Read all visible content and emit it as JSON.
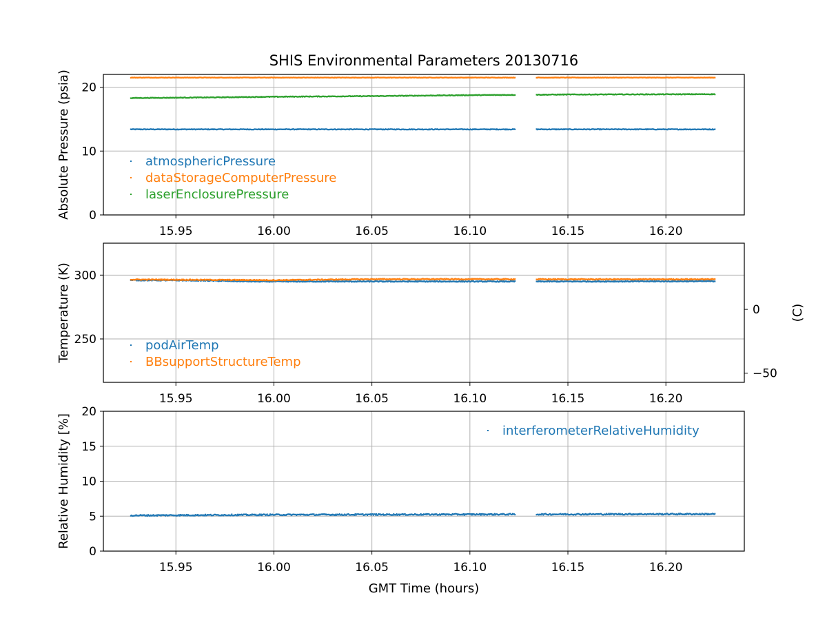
{
  "chart_data": [
    {
      "type": "scatter",
      "title": "SHIS Environmental Parameters 20130716",
      "xlabel": "",
      "ylabel": "Absolute Pressure (psia)",
      "xlim": [
        15.913,
        16.24
      ],
      "ylim": [
        0,
        22
      ],
      "yticks": [
        0,
        10,
        20
      ],
      "xticks": [
        15.95,
        16.0,
        16.05,
        16.1,
        16.15,
        16.2
      ],
      "xtick_labels": [
        "15.95",
        "16.00",
        "16.05",
        "16.10",
        "16.15",
        "16.20"
      ],
      "grid": true,
      "legend_position": "lower-left",
      "segments": [
        [
          15.927,
          16.123
        ],
        [
          16.134,
          16.225
        ]
      ],
      "series": [
        {
          "name": "atmosphericPressure",
          "color": "#1f77b4",
          "points": [
            [
              15.927,
              13.4
            ],
            [
              16.225,
              13.4
            ]
          ],
          "jitter": 0.05
        },
        {
          "name": "dataStorageComputerPressure",
          "color": "#ff7f0e",
          "points": [
            [
              15.927,
              21.5
            ],
            [
              16.225,
              21.5
            ]
          ],
          "jitter": 0.03
        },
        {
          "name": "laserEnclosurePressure",
          "color": "#2ca02c",
          "points": [
            [
              15.927,
              18.3
            ],
            [
              15.97,
              18.4
            ],
            [
              16.0,
              18.5
            ],
            [
              16.05,
              18.6
            ],
            [
              16.1,
              18.75
            ],
            [
              16.15,
              18.85
            ],
            [
              16.225,
              18.9
            ]
          ],
          "jitter": 0.05
        }
      ]
    },
    {
      "type": "scatter",
      "title": "",
      "xlabel": "",
      "ylabel": "Temperature (K)",
      "y2label": "(C)",
      "xlim": [
        15.913,
        16.24
      ],
      "ylim": [
        216,
        325
      ],
      "yticks": [
        250,
        300
      ],
      "y2ticks": [
        0,
        -50
      ],
      "y2_offset": 273.15,
      "xticks": [
        15.95,
        16.0,
        16.05,
        16.1,
        16.15,
        16.2
      ],
      "xtick_labels": [
        "15.95",
        "16.00",
        "16.05",
        "16.10",
        "16.15",
        "16.20"
      ],
      "grid": true,
      "legend_position": "lower-left",
      "segments": [
        [
          15.927,
          16.123
        ],
        [
          16.134,
          16.225
        ]
      ],
      "series": [
        {
          "name": "podAirTemp",
          "color": "#1f77b4",
          "points": [
            [
              15.927,
              296.0
            ],
            [
              15.96,
              295.8
            ],
            [
              15.99,
              295.0
            ],
            [
              16.05,
              295.0
            ],
            [
              16.1,
              295.0
            ],
            [
              16.15,
              295.0
            ],
            [
              16.225,
              295.2
            ]
          ],
          "jitter": 0.35
        },
        {
          "name": "BBsupportStructureTemp",
          "color": "#ff7f0e",
          "points": [
            [
              15.927,
              296.5
            ],
            [
              15.96,
              296.3
            ],
            [
              16.0,
              296.0
            ],
            [
              16.05,
              296.8
            ],
            [
              16.1,
              296.8
            ],
            [
              16.15,
              296.7
            ],
            [
              16.225,
              296.7
            ]
          ],
          "jitter": 0.35
        }
      ]
    },
    {
      "type": "scatter",
      "title": "",
      "xlabel": "GMT Time (hours)",
      "ylabel": "Relative Humidity [%]",
      "xlim": [
        15.913,
        16.24
      ],
      "ylim": [
        0,
        20
      ],
      "yticks": [
        0,
        5,
        10,
        15,
        20
      ],
      "xticks": [
        15.95,
        16.0,
        16.05,
        16.1,
        16.15,
        16.2
      ],
      "xtick_labels": [
        "15.95",
        "16.00",
        "16.05",
        "16.10",
        "16.15",
        "16.20"
      ],
      "grid": true,
      "legend_position": "upper-right",
      "segments": [
        [
          15.927,
          16.123
        ],
        [
          16.134,
          16.225
        ]
      ],
      "series": [
        {
          "name": "interferometerRelativeHumidity",
          "color": "#1f77b4",
          "points": [
            [
              15.927,
              5.1
            ],
            [
              16.0,
              5.2
            ],
            [
              16.1,
              5.25
            ],
            [
              16.225,
              5.3
            ]
          ],
          "jitter": 0.09
        }
      ]
    }
  ]
}
